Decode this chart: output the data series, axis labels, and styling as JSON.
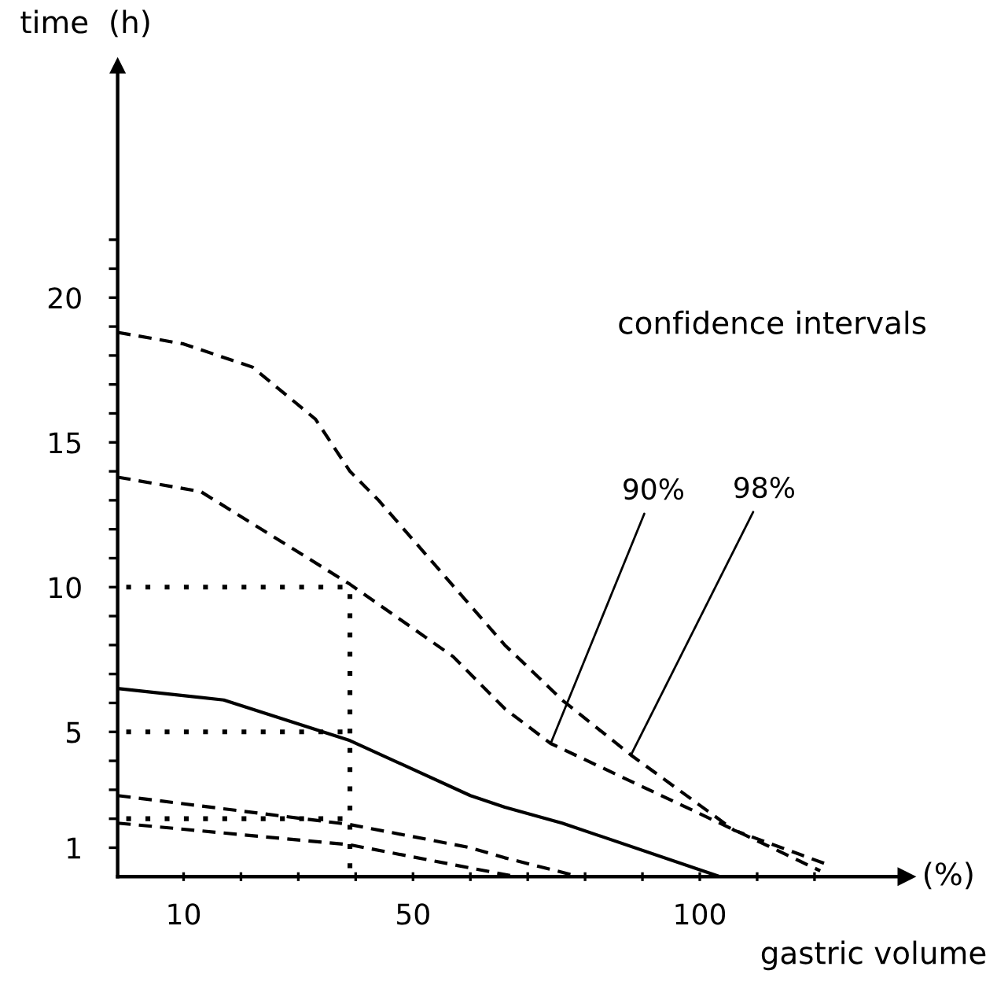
{
  "chart_data": {
    "type": "line",
    "xlabel": "gastric volume",
    "ylabel": "time  (h)",
    "annotations": [
      "confidence intervals",
      "(%)",
      {
        "text": "90%",
        "x": 74,
        "y": 4.6
      },
      {
        "text": "98%",
        "x": 88,
        "y": 4.2
      }
    ],
    "xlim": [
      -1.5,
      136
    ],
    "ylim": [
      0,
      28
    ],
    "xticks": [
      {
        "value": 10,
        "label": "10"
      },
      {
        "value": 20,
        "label": null
      },
      {
        "value": 30,
        "label": null
      },
      {
        "value": 40,
        "label": null
      },
      {
        "value": 50,
        "label": "50"
      },
      {
        "value": 60,
        "label": null
      },
      {
        "value": 70,
        "label": null
      },
      {
        "value": 80,
        "label": null
      },
      {
        "value": 90,
        "label": null
      },
      {
        "value": 100,
        "label": "100"
      },
      {
        "value": 110,
        "label": null
      },
      {
        "value": 120,
        "label": null
      }
    ],
    "yticks": [
      1,
      {
        "value": 2,
        "label": null
      },
      {
        "value": 3,
        "label": null
      },
      {
        "value": 4,
        "label": null
      },
      5,
      {
        "value": 6,
        "label": null
      },
      {
        "value": 7,
        "label": null
      },
      {
        "value": 8,
        "label": null
      },
      {
        "value": 9,
        "label": null
      },
      10,
      {
        "value": 11,
        "label": null
      },
      {
        "value": 12,
        "label": null
      },
      {
        "value": 13,
        "label": null
      },
      {
        "value": 14,
        "label": null
      },
      15,
      {
        "value": 16,
        "label": null
      },
      {
        "value": 17,
        "label": null
      },
      {
        "value": 18,
        "label": null
      },
      {
        "value": 19,
        "label": null
      },
      20,
      {
        "value": 21,
        "label": null
      },
      {
        "value": 22,
        "label": null
      }
    ],
    "grid": false,
    "legend": false,
    "marker": "none",
    "series": [
      {
        "color": "#000000",
        "line_style": "dashed",
        "x": [
          -1.5,
          10,
          22,
          33,
          39,
          44,
          66,
          76,
          88,
          106,
          122.5
        ],
        "values": [
          18.8,
          18.4,
          17.6,
          15.8,
          14.0,
          13.0,
          8.0,
          6.1,
          4.2,
          1.6,
          0.4
        ]
      },
      {
        "color": "#000000",
        "line_style": "dashed",
        "x": [
          -1.5,
          13,
          39,
          57,
          66,
          74,
          111.5,
          121
        ],
        "values": [
          13.8,
          13.3,
          10.1,
          7.6,
          5.8,
          4.6,
          1.1,
          0.2
        ]
      },
      {
        "color": "#000000",
        "line_style": "solid",
        "x": [
          -1.5,
          17,
          39,
          60,
          66,
          76,
          103.5
        ],
        "values": [
          6.5,
          6.1,
          4.7,
          2.8,
          2.4,
          1.85,
          0
        ]
      },
      {
        "color": "#000000",
        "line_style": "dashed",
        "x": [
          -1.5,
          39,
          60,
          66,
          79
        ],
        "values": [
          2.8,
          1.8,
          1.0,
          0.65,
          0
        ]
      },
      {
        "color": "#000000",
        "line_style": "dashed",
        "x": [
          -1.5,
          39,
          60,
          68
        ],
        "values": [
          1.85,
          1.1,
          0.3,
          0
        ]
      },
      {
        "color": "#000000",
        "line_style": "dotted",
        "x": [
          0,
          39,
          39
        ],
        "values": [
          10,
          10,
          0
        ]
      },
      {
        "color": "#000000",
        "line_style": "dotted",
        "x": [
          0,
          39
        ],
        "values": [
          5,
          5
        ]
      },
      {
        "color": "#000000",
        "line_style": "dotted",
        "x": [
          0,
          39
        ],
        "values": [
          2,
          2
        ]
      }
    ]
  }
}
